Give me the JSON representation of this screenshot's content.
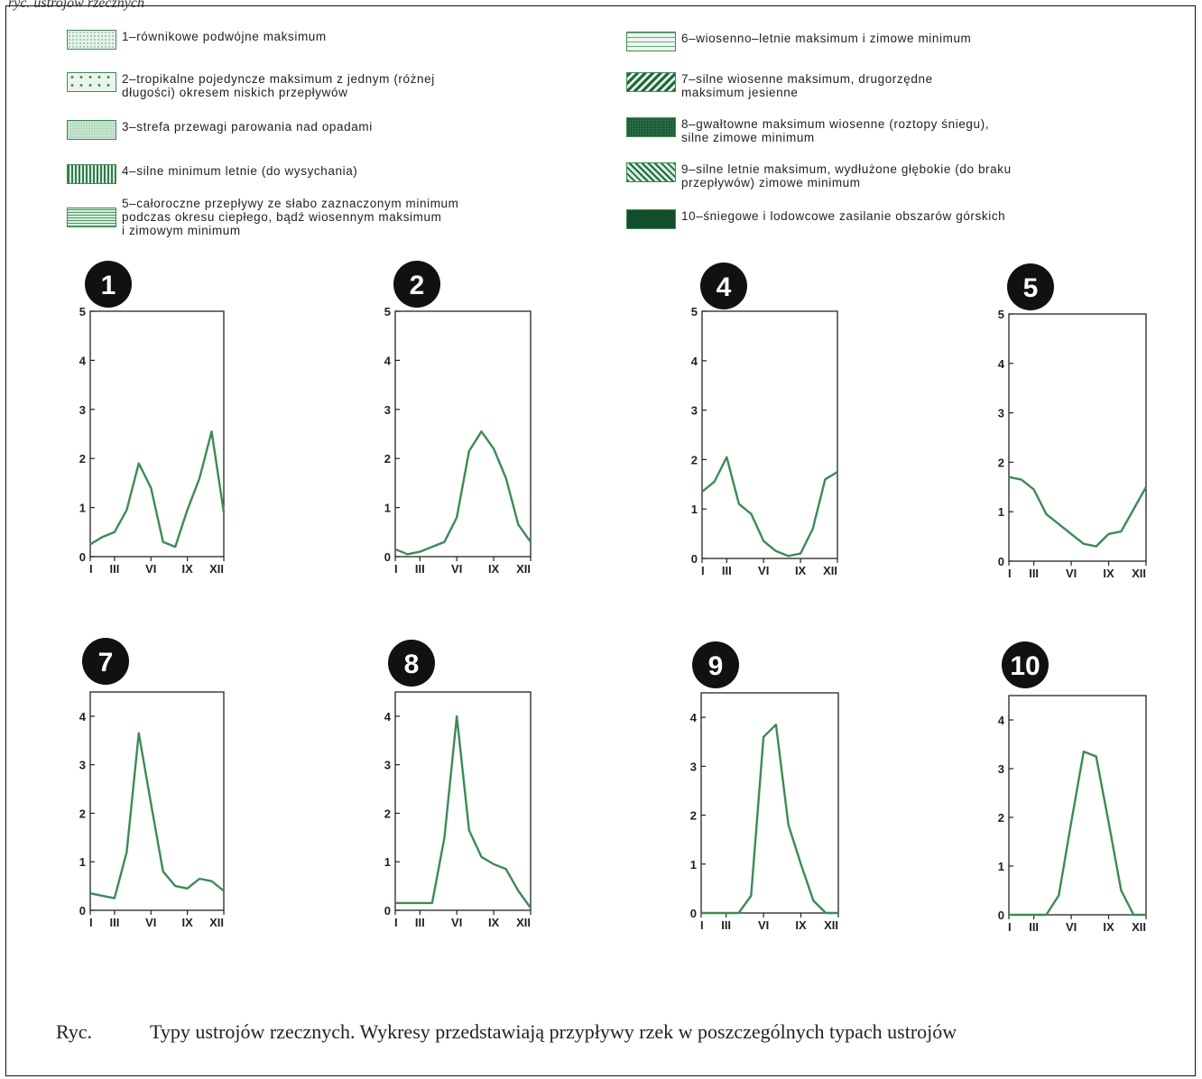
{
  "page": {
    "top_caption": "ryc. ustrojów rzecznych"
  },
  "legend": [
    {
      "id": "1",
      "text": "1–równikowe podwójne maksimum",
      "icon": "dotted-swatch-icon"
    },
    {
      "id": "2",
      "text": "2–tropikalne pojedyncze maksimum z jednym (różnej\n    długości) okresem niskich przepływów",
      "icon": "circles-swatch-icon"
    },
    {
      "id": "3",
      "text": "3–strefa przewagi parowania nad opadami",
      "icon": "stipple-swatch-icon"
    },
    {
      "id": "4",
      "text": "4–silne minimum letnie (do wysychania)",
      "icon": "vertical-lines-swatch-icon"
    },
    {
      "id": "5",
      "text": "5–całoroczne przepływy ze słabo zaznaczonym minimum\n    podczas okresu ciepłego, bądź wiosennym maksimum\n    i zimowym minimum",
      "icon": "horizontal-lines-swatch-icon"
    },
    {
      "id": "6",
      "text": "6–wiosenno–letnie maksimum i zimowe minimum",
      "icon": "dashed-lines-swatch-icon"
    },
    {
      "id": "7",
      "text": "7–silne wiosenne maksimum, drugorzędne\n  maksimum jesienne",
      "icon": "diagonal-hatch-swatch-icon"
    },
    {
      "id": "8",
      "text": "8–gwałtowne maksimum wiosenne (roztopy śniegu),\n  silne zimowe minimum",
      "icon": "dense-dots-swatch-icon"
    },
    {
      "id": "9",
      "text": "9–silne letnie maksimum, wydłużone głębokie (do braku\n  przepływów) zimowe minimum",
      "icon": "diagonal-lines-swatch-icon"
    },
    {
      "id": "10",
      "text": "10–śniegowe i lodowcowe zasilanie obszarów górskich",
      "icon": "solid-swatch-icon"
    }
  ],
  "colors": {
    "line": "#3d8a55",
    "axis": "#222222",
    "badge": "#111111",
    "badge_text": "#ffffff"
  },
  "chart_data": [
    {
      "type": "line",
      "label": "1",
      "x_ticks": [
        "I",
        "III",
        "VI",
        "IX",
        "XII"
      ],
      "y_ticks": [
        "0",
        "1",
        "2",
        "3",
        "4",
        "5"
      ],
      "ylim": [
        0,
        5
      ],
      "x": [
        1,
        2,
        3,
        4,
        5,
        6,
        7,
        8,
        9,
        10,
        11,
        12
      ],
      "values": [
        0.25,
        0.4,
        0.5,
        0.95,
        1.9,
        1.4,
        0.3,
        0.2,
        0.95,
        1.6,
        2.55,
        0.9
      ]
    },
    {
      "type": "line",
      "label": "2",
      "x_ticks": [
        "I",
        "III",
        "VI",
        "IX",
        "XII"
      ],
      "y_ticks": [
        "0",
        "1",
        "2",
        "3",
        "4",
        "5"
      ],
      "ylim": [
        0,
        5
      ],
      "x": [
        1,
        2,
        3,
        4,
        5,
        6,
        7,
        8,
        9,
        10,
        11,
        12
      ],
      "values": [
        0.15,
        0.05,
        0.1,
        0.2,
        0.3,
        0.8,
        2.15,
        2.55,
        2.2,
        1.6,
        0.65,
        0.3
      ]
    },
    {
      "type": "line",
      "label": "4",
      "x_ticks": [
        "I",
        "III",
        "VI",
        "IX",
        "XII"
      ],
      "y_ticks": [
        "0",
        "1",
        "2",
        "3",
        "4",
        "5"
      ],
      "ylim": [
        0,
        5
      ],
      "x": [
        1,
        2,
        3,
        4,
        5,
        6,
        7,
        8,
        9,
        10,
        11,
        12
      ],
      "values": [
        1.35,
        1.55,
        2.05,
        1.1,
        0.9,
        0.35,
        0.15,
        0.05,
        0.1,
        0.6,
        1.6,
        1.75
      ]
    },
    {
      "type": "line",
      "label": "5",
      "x_ticks": [
        "I",
        "III",
        "VI",
        "IX",
        "XII"
      ],
      "y_ticks": [
        "0",
        "1",
        "2",
        "3",
        "4",
        "5"
      ],
      "ylim": [
        0,
        5
      ],
      "x": [
        1,
        2,
        3,
        4,
        5,
        6,
        7,
        8,
        9,
        10,
        11,
        12
      ],
      "values": [
        1.7,
        1.65,
        1.45,
        0.95,
        0.75,
        0.55,
        0.35,
        0.3,
        0.55,
        0.6,
        1.05,
        1.5
      ]
    },
    {
      "type": "line",
      "label": "7",
      "x_ticks": [
        "I",
        "III",
        "VI",
        "IX",
        "XII"
      ],
      "y_ticks": [
        "0",
        "1",
        "2",
        "3",
        "4"
      ],
      "ylim": [
        0,
        4.5
      ],
      "x": [
        1,
        2,
        3,
        4,
        5,
        6,
        7,
        8,
        9,
        10,
        11,
        12
      ],
      "values": [
        0.35,
        0.3,
        0.25,
        1.2,
        3.65,
        2.2,
        0.8,
        0.5,
        0.45,
        0.65,
        0.6,
        0.4
      ]
    },
    {
      "type": "line",
      "label": "8",
      "x_ticks": [
        "I",
        "III",
        "VI",
        "IX",
        "XII"
      ],
      "y_ticks": [
        "0",
        "1",
        "2",
        "3",
        "4"
      ],
      "ylim": [
        0,
        4.5
      ],
      "x": [
        1,
        2,
        3,
        4,
        5,
        6,
        7,
        8,
        9,
        10,
        11,
        12
      ],
      "values": [
        0.15,
        0.15,
        0.15,
        0.15,
        1.5,
        4.0,
        1.65,
        1.1,
        0.95,
        0.85,
        0.4,
        0.05
      ]
    },
    {
      "type": "line",
      "label": "9",
      "x_ticks": [
        "I",
        "III",
        "VI",
        "IX",
        "XII"
      ],
      "y_ticks": [
        "0",
        "1",
        "2",
        "3",
        "4"
      ],
      "ylim": [
        0,
        4.5
      ],
      "x": [
        1,
        2,
        3,
        4,
        5,
        6,
        7,
        8,
        9,
        10,
        11,
        12
      ],
      "values": [
        0,
        0,
        0,
        0,
        0.35,
        3.6,
        3.85,
        1.8,
        1.0,
        0.25,
        0,
        0
      ]
    },
    {
      "type": "line",
      "label": "10",
      "x_ticks": [
        "I",
        "III",
        "VI",
        "IX",
        "XII"
      ],
      "y_ticks": [
        "0",
        "1",
        "2",
        "3",
        "4"
      ],
      "ylim": [
        0,
        4.5
      ],
      "x": [
        1,
        2,
        3,
        4,
        5,
        6,
        7,
        8,
        9,
        10,
        11,
        12
      ],
      "values": [
        0,
        0,
        0,
        0,
        0.4,
        1.9,
        3.35,
        3.25,
        1.9,
        0.5,
        0,
        0
      ]
    }
  ],
  "caption": {
    "label": "Ryc.",
    "text": "Typy ustrojów rzecznych. Wykresy przedstawiają przypływy rzek w poszczególnych typach ustrojów"
  }
}
